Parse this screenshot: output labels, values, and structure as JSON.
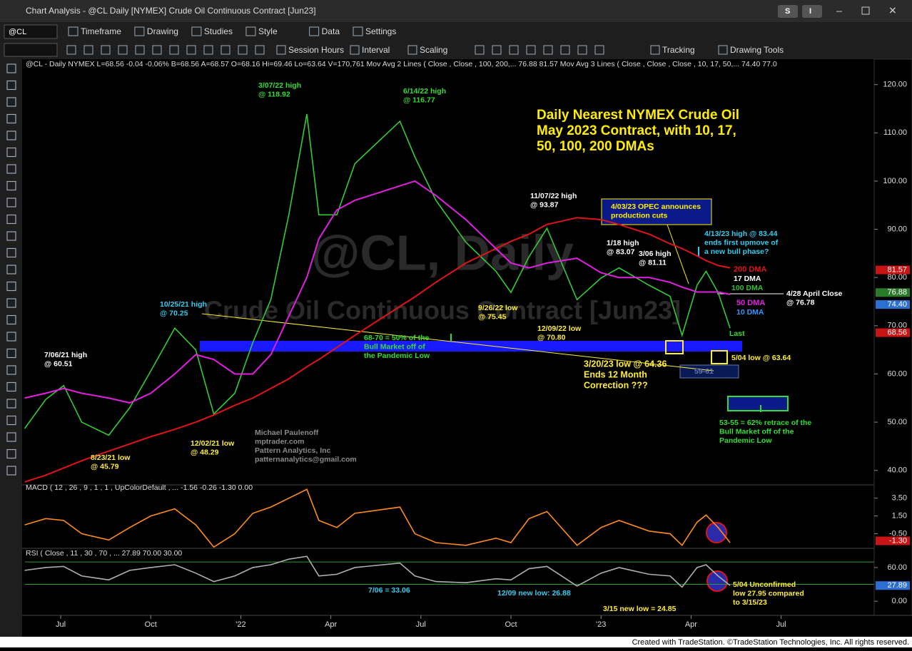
{
  "window": {
    "title": "Chart Analysis - @CL Daily [NYMEX] Crude Oil Continuous Contract [Jun23]",
    "buttons": [
      "S",
      "I"
    ]
  },
  "toolbar": {
    "symbol": "@CL",
    "items": [
      "Timeframe",
      "Drawing",
      "Studies",
      "Style",
      "Data",
      "Settings"
    ],
    "items2": [
      "Session Hours",
      "Interval",
      "Scaling",
      "Tracking",
      "Drawing Tools"
    ]
  },
  "chart_data": [
    {
      "type": "line",
      "header": "@CL - Daily  NYMEX  L=68.56  -0.04  -0.06%  B=68.56  A=68.57  O=68.16  Hi=69.46  Lo=63.64  V=170,761  Mov Avg 2 Lines (   Close ,     Close ,  100,  200,...  76.88  81.57  Mov Avg 3 Lines (  Close ,  Close ,  Close , 10, 17, 50,...  74.40  77.0",
      "watermark": [
        "@CL, Daily",
        "Crude Oil Continuous Contract [Jun23]"
      ],
      "x": [
        -1.2,
        -0.5,
        0.1,
        0.7,
        1.6,
        2.3,
        3.0,
        3.8,
        4.5,
        5.1,
        5.8,
        6.4,
        7.0,
        7.6,
        8.2,
        8.6,
        9.2,
        9.8,
        11.3,
        11.8,
        12.5,
        13.5,
        14.5,
        15.0,
        15.6,
        16.2,
        17.2,
        18.0,
        18.6,
        19.6,
        20.3,
        20.7,
        21.2,
        21.5,
        21.9,
        22.3
      ],
      "series": [
        {
          "color": "#33cc33",
          "values": [
            48.7,
            54.7,
            57.6,
            50,
            47.3,
            53,
            60.6,
            69.5,
            65,
            51.7,
            56,
            66.5,
            75.4,
            93,
            113.9,
            93,
            93,
            103.6,
            112.4,
            105,
            96,
            87.3,
            81.3,
            76.9,
            84.3,
            90.2,
            75.4,
            79.9,
            82,
            78.4,
            76.1,
            68,
            78.4,
            81.3,
            76.9,
            69.5
          ]
        },
        {
          "name": "200 DMA",
          "color": "#e01414",
          "values": [
            37.6,
            39,
            40.5,
            42,
            44,
            45.5,
            47,
            48.5,
            50,
            51.5,
            53.5,
            55,
            57,
            59,
            61.5,
            63,
            65.5,
            68,
            74,
            76,
            79,
            83,
            86,
            87.5,
            89,
            91,
            92.4,
            92,
            91,
            89,
            87,
            86,
            84.5,
            83.5,
            82.5,
            82
          ]
        },
        {
          "name": "50 DMA",
          "color": "#e020e0",
          "values": [
            55,
            56,
            57,
            56,
            55,
            54,
            56,
            60,
            64,
            63,
            60,
            60,
            64,
            72,
            80,
            88,
            94,
            96,
            99,
            100,
            97,
            92,
            86,
            83,
            82,
            83,
            84,
            81,
            80,
            80,
            79,
            78,
            77,
            77,
            77,
            76.5
          ]
        }
      ],
      "xlim": [
        -1.19,
        27.1
      ],
      "xticks": [
        {
          "value": 0,
          "label": "Jul"
        },
        {
          "value": 3,
          "label": "Oct"
        },
        {
          "value": 6,
          "label": "'22"
        },
        {
          "value": 9,
          "label": "Apr"
        },
        {
          "value": 12,
          "label": "Jul"
        },
        {
          "value": 15,
          "label": "Oct"
        },
        {
          "value": 18,
          "label": "'23"
        },
        {
          "value": 21,
          "label": "Apr"
        },
        {
          "value": 24,
          "label": "Jul"
        }
      ],
      "ylim": [
        37,
        123.5
      ],
      "yticks": [
        {
          "value": 40,
          "label": "40.00"
        },
        {
          "value": 50,
          "label": "50.00"
        },
        {
          "value": 60,
          "label": "60.00"
        },
        {
          "value": 70,
          "label": "70.00"
        },
        {
          "value": 80,
          "label": "80.00"
        },
        {
          "value": 90,
          "label": "90.00"
        },
        {
          "value": 100,
          "label": "100.00"
        },
        {
          "value": 110,
          "label": "110.00"
        },
        {
          "value": 120,
          "label": "120.00"
        }
      ],
      "last_values": [
        {
          "value": 81.57,
          "label": "81.57",
          "color": "#c81414"
        },
        {
          "value": 76.88,
          "label": "76.88",
          "color": "#2a7a2a"
        },
        {
          "value": 74.4,
          "label": "74.40",
          "color": "#2b6fd0"
        },
        {
          "value": 68.56,
          "label": "68.56",
          "color": "#c81414"
        }
      ]
    },
    {
      "type": "line",
      "header": "MACD ( 12 , 26 , 9 , 1 , 1 , UpColorDefault , ...  -1.56  -0.26  -1.30  0.00",
      "series": [
        {
          "color": "#ff8c1a",
          "values": [
            0.5,
            1.2,
            1.0,
            -0.5,
            -1.2,
            0.2,
            1.5,
            2.3,
            0.5,
            -2.0,
            -0.5,
            1.8,
            2.5,
            3.5,
            4.5,
            1.0,
            0.2,
            1.8,
            2.5,
            -0.5,
            -1.5,
            -1.8,
            -1.0,
            -1.5,
            1.2,
            2.0,
            -1.8,
            0.2,
            1.0,
            -0.2,
            -0.5,
            -1.8,
            0.8,
            1.6,
            0.2,
            -1.5
          ]
        }
      ],
      "ylim": [
        -2.06,
        5.0
      ],
      "yticks": [
        {
          "value": 3.5,
          "label": "3.50"
        },
        {
          "value": 1.5,
          "label": "1.50"
        },
        {
          "value": -0.5,
          "label": "-0.50"
        }
      ],
      "last_values": [
        {
          "value": -1.3,
          "label": "-1.30",
          "color": "#c81414"
        }
      ]
    },
    {
      "type": "line",
      "header": "RSI ( Close , 11 , 30 , 70 , ...  27.89  70.00  30.00",
      "series": [
        {
          "color": "#b0b0b0",
          "values": [
            55,
            60,
            62,
            45,
            38,
            55,
            60,
            65,
            50,
            35,
            45,
            60,
            65,
            75,
            80,
            45,
            48,
            60,
            68,
            45,
            35,
            33,
            40,
            38,
            58,
            62,
            27,
            50,
            60,
            48,
            45,
            25,
            60,
            65,
            45,
            28
          ]
        }
      ],
      "levels": [
        70,
        30
      ],
      "ylim": [
        -24,
        93
      ],
      "yticks": [
        {
          "value": 60,
          "label": "60.00"
        },
        {
          "value": 0,
          "label": "0.00"
        }
      ],
      "last_values": [
        {
          "value": 27.89,
          "label": "27.89",
          "color": "#2b6fd0"
        }
      ]
    }
  ],
  "annotations": [
    {
      "lines": [
        "3/07/22 high",
        "@ 118.92"
      ],
      "color": "#33dd33"
    },
    {
      "lines": [
        "6/14/22 high",
        "@ 116.77"
      ],
      "color": "#33dd33"
    },
    {
      "lines": [
        "11/07/22 high",
        "@ 93.87"
      ],
      "color": "#ffffff"
    },
    {
      "lines": [
        "1/18 high",
        "@ 83.07"
      ],
      "color": "#ffffff"
    },
    {
      "lines": [
        "3/06 high",
        "@ 81.11"
      ],
      "color": "#ffffff"
    },
    {
      "lines": [
        "10/25/21 high",
        "@ 70.25"
      ],
      "color": "#33ccee"
    },
    {
      "lines": [
        "7/06/21 high",
        "@ 60.51"
      ],
      "color": "#ffffff"
    },
    {
      "lines": [
        "8/23/21 low",
        "@ 45.79"
      ],
      "color": "#ffee33"
    },
    {
      "lines": [
        "12/02/21 low",
        "@ 48.29"
      ],
      "color": "#ffee33"
    },
    {
      "lines": [
        "9/26/22 low",
        "@ 75.45"
      ],
      "color": "#ffee33"
    },
    {
      "lines": [
        "12/09/22 low",
        "@ 70.80"
      ],
      "color": "#ffee33"
    },
    {
      "lines": [
        "68-70 = 50% of the",
        "Bull Market off of",
        "the Pandemic Low"
      ],
      "color": "#33dd33"
    },
    {
      "lines": [
        "3/20/23 low @ 64.36",
        "Ends 12 Month",
        "Correction ???"
      ],
      "color": "#ffee33"
    },
    {
      "lines": [
        "5/04 low @ 63.64"
      ],
      "color": "#ffee33"
    },
    {
      "lines": [
        "Last"
      ],
      "color": "#33dd33"
    },
    {
      "lines": [
        "4/13/23 high @ 83.44",
        "ends first upmove of",
        "a new bull phase?"
      ],
      "color": "#33ccee"
    },
    {
      "lines": [
        "4/28 April Close",
        "@ 76.78"
      ],
      "color": "#ffffff"
    },
    {
      "lines": [
        "53-55 = 62% retrace of the",
        "Bull Market off of the",
        "Pandemic Low"
      ],
      "color": "#33dd33"
    },
    {
      "lines": [
        "Michael Paulenoff",
        "mptrader.com",
        "Pattern Analytics, Inc",
        "patternanalytics@gmail.com"
      ],
      "color": "#8a8a8a"
    },
    {
      "lines": [
        "17 DMA"
      ],
      "color": "#ffffff"
    },
    {
      "lines": [
        "100 DMA"
      ],
      "color": "#33bb33"
    },
    {
      "lines": [
        "10 DMA"
      ],
      "color": "#3399ff"
    },
    {
      "lines": [
        "Daily Nearest NYMEX Crude Oil",
        "May 2023 Contract, with 10, 17,",
        "50, 100, 200 DMAs"
      ],
      "color": "#ffee00"
    },
    {
      "lines": [
        "4/03/23 OPEC announces",
        "production cuts"
      ],
      "color": "#ffee00"
    },
    {
      "lines": [
        "59-61"
      ],
      "color": "#6677aa"
    },
    {
      "lines": [
        "7/06 = 33.06"
      ],
      "color": "#33ccee"
    },
    {
      "lines": [
        "12/09 new low: 26.88"
      ],
      "color": "#33ccee"
    },
    {
      "lines": [
        "3/15 new low = 24.85"
      ],
      "color": "#ffee33"
    },
    {
      "lines": [
        "5/04 Unconfirmed",
        "low 27.95 compared",
        "to 3/15/23"
      ],
      "color": "#ffee33"
    }
  ],
  "footer": "Created with TradeStation. ©TradeStation Technologies, Inc. All rights reserved."
}
